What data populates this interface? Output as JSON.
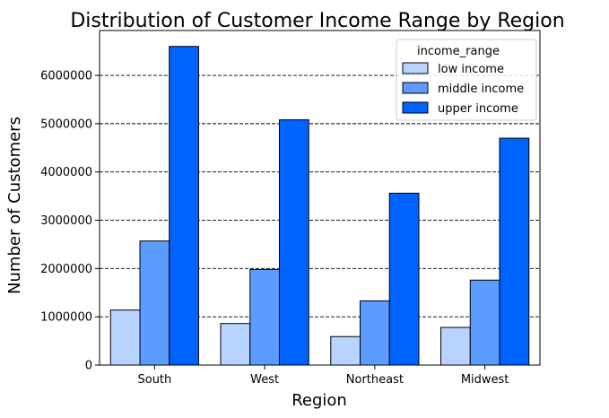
{
  "chart_data": {
    "type": "bar",
    "title": "Distribution of Customer Income Range by Region",
    "xlabel": "Region",
    "ylabel": "Number of Customers",
    "categories": [
      "South",
      "West",
      "Northeast",
      "Midwest"
    ],
    "series": [
      {
        "name": "low income",
        "color": "#b8d4ff",
        "values": [
          1140000,
          860000,
          590000,
          780000
        ]
      },
      {
        "name": "middle income",
        "color": "#5c9cff",
        "values": [
          2570000,
          1980000,
          1330000,
          1760000
        ]
      },
      {
        "name": "upper income",
        "color": "#0062ff",
        "values": [
          6600000,
          5080000,
          3560000,
          4700000
        ]
      }
    ],
    "ylim": [
      0,
      6930000
    ],
    "yticks": [
      0,
      1000000,
      2000000,
      3000000,
      4000000,
      5000000,
      6000000
    ],
    "ytick_labels": [
      "0",
      "1000000",
      "2000000",
      "3000000",
      "4000000",
      "5000000",
      "6000000"
    ],
    "grid": {
      "axis": "y",
      "style": "dashed"
    },
    "legend": {
      "title": "income_range",
      "position": "top-right"
    }
  }
}
